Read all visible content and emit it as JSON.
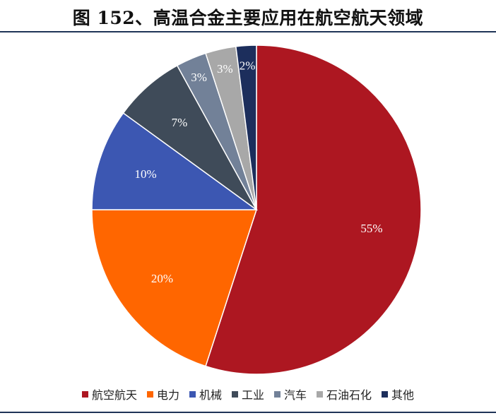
{
  "chart_data": {
    "type": "pie",
    "title": "图 152、高温合金主要应用在航空航天领域",
    "legend_position": "bottom",
    "slices": [
      {
        "name": "航空航天",
        "value": 55,
        "label": "55%",
        "color": "#ad1721"
      },
      {
        "name": "电力",
        "value": 20,
        "label": "20%",
        "color": "#ff6600"
      },
      {
        "name": "机械",
        "value": 10,
        "label": "10%",
        "color": "#3c57b2"
      },
      {
        "name": "工业",
        "value": 7,
        "label": "7%",
        "color": "#3f4b59"
      },
      {
        "name": "汽车",
        "value": 3,
        "label": "3%",
        "color": "#728198"
      },
      {
        "name": "石油石化",
        "value": 3,
        "label": "3%",
        "color": "#a8a8a8"
      },
      {
        "name": "其他",
        "value": 2,
        "label": "2%",
        "color": "#1c2e5c"
      }
    ]
  }
}
